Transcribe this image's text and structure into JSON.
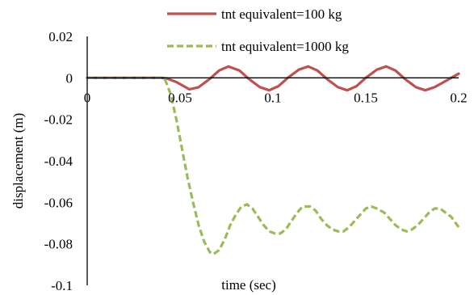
{
  "chart_data": {
    "type": "line",
    "title": "",
    "xlabel": "time (sec)",
    "ylabel": "displacement (m)",
    "xlim": [
      0,
      0.2
    ],
    "ylim": [
      -0.1,
      0.02
    ],
    "xticks": [
      0,
      0.05,
      0.1,
      0.15,
      0.2
    ],
    "xtick_labels": [
      "0",
      "0.05",
      "0.1",
      "0.15",
      "0.2"
    ],
    "yticks": [
      0.02,
      0,
      -0.02,
      -0.04,
      -0.06,
      -0.08,
      -0.1
    ],
    "ytick_labels": [
      "0.02",
      "0",
      "-0.02",
      "-0.04",
      "-0.06",
      "-0.08",
      "-0.1"
    ],
    "grid": false,
    "legend_position": "top-right",
    "series": [
      {
        "name": "tnt equivalent=100 kg",
        "color": "#c0504d",
        "style": "solid",
        "x": [
          0,
          0.02,
          0.04,
          0.043,
          0.048,
          0.055,
          0.06,
          0.066,
          0.071,
          0.076,
          0.082,
          0.087,
          0.093,
          0.098,
          0.103,
          0.108,
          0.114,
          0.119,
          0.124,
          0.129,
          0.135,
          0.14,
          0.145,
          0.15,
          0.156,
          0.161,
          0.166,
          0.171,
          0.177,
          0.182,
          0.187,
          0.192,
          0.196,
          0.2
        ],
        "y": [
          0,
          0,
          0,
          -0.0003,
          -0.002,
          -0.0055,
          -0.0045,
          -0.0005,
          0.0035,
          0.0055,
          0.0035,
          -0.0005,
          -0.0045,
          -0.006,
          -0.004,
          0,
          0.004,
          0.0055,
          0.0035,
          -0.0005,
          -0.0045,
          -0.006,
          -0.004,
          0,
          0.004,
          0.0055,
          0.0035,
          -0.0005,
          -0.0045,
          -0.006,
          -0.0045,
          -0.002,
          0,
          0.002
        ]
      },
      {
        "name": "tnt equivalent=1000 kg",
        "color": "#9bbb59",
        "style": "dashed",
        "x": [
          0,
          0.02,
          0.04,
          0.042,
          0.045,
          0.048,
          0.051,
          0.054,
          0.057,
          0.06,
          0.063,
          0.066,
          0.068,
          0.071,
          0.074,
          0.077,
          0.08,
          0.083,
          0.086,
          0.089,
          0.092,
          0.095,
          0.098,
          0.101,
          0.104,
          0.107,
          0.11,
          0.113,
          0.116,
          0.12,
          0.123,
          0.126,
          0.129,
          0.132,
          0.135,
          0.138,
          0.141,
          0.144,
          0.147,
          0.15,
          0.153,
          0.156,
          0.16,
          0.163,
          0.166,
          0.169,
          0.172,
          0.175,
          0.178,
          0.181,
          0.184,
          0.187,
          0.19,
          0.193,
          0.196,
          0.2
        ],
        "y": [
          0,
          0,
          0,
          -0.001,
          -0.008,
          -0.02,
          -0.034,
          -0.048,
          -0.06,
          -0.071,
          -0.079,
          -0.084,
          -0.085,
          -0.083,
          -0.078,
          -0.071,
          -0.066,
          -0.062,
          -0.061,
          -0.063,
          -0.067,
          -0.071,
          -0.074,
          -0.075,
          -0.075,
          -0.073,
          -0.069,
          -0.065,
          -0.062,
          -0.062,
          -0.064,
          -0.068,
          -0.071,
          -0.073,
          -0.074,
          -0.074,
          -0.072,
          -0.069,
          -0.066,
          -0.063,
          -0.062,
          -0.063,
          -0.065,
          -0.068,
          -0.071,
          -0.073,
          -0.074,
          -0.073,
          -0.071,
          -0.068,
          -0.065,
          -0.063,
          -0.063,
          -0.065,
          -0.067,
          -0.072
        ]
      }
    ]
  }
}
